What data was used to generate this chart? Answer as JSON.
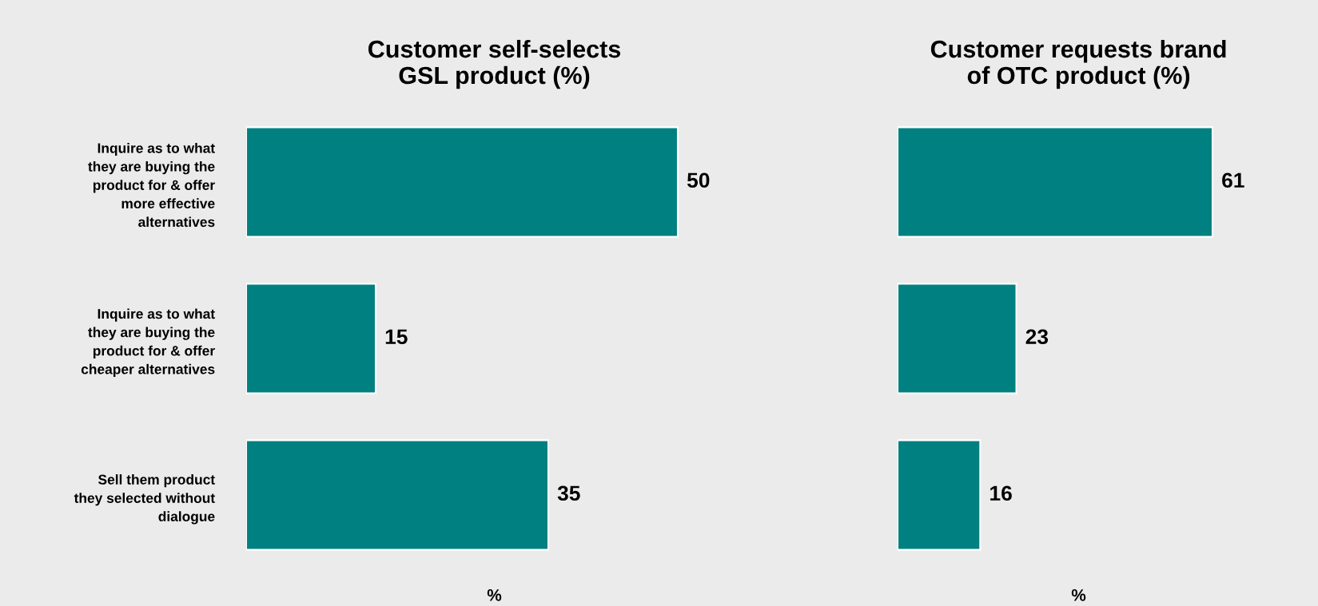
{
  "chart_data": [
    {
      "type": "bar",
      "orientation": "horizontal",
      "title": "Customer self-selects\nGSL product (%)",
      "xlabel": "%",
      "categories": [
        "Inquire as to what\nthey are buying the\nproduct for & offer\nmore effective\nalternatives",
        "Inquire as to what\nthey are buying the\nproduct for & offer\ncheaper alternatives",
        "Sell them product\nthey selected without\ndialogue"
      ],
      "values": [
        50,
        15,
        35
      ],
      "color": "#008080",
      "data_labels": true,
      "tick_labels": "y"
    },
    {
      "type": "bar",
      "orientation": "horizontal",
      "title": "Customer requests brand\nof OTC product (%)",
      "xlabel": "%",
      "categories": [
        null,
        null,
        null
      ],
      "values": [
        61,
        23,
        16
      ],
      "color": "#008080",
      "data_labels": true,
      "tick_labels": false
    }
  ]
}
